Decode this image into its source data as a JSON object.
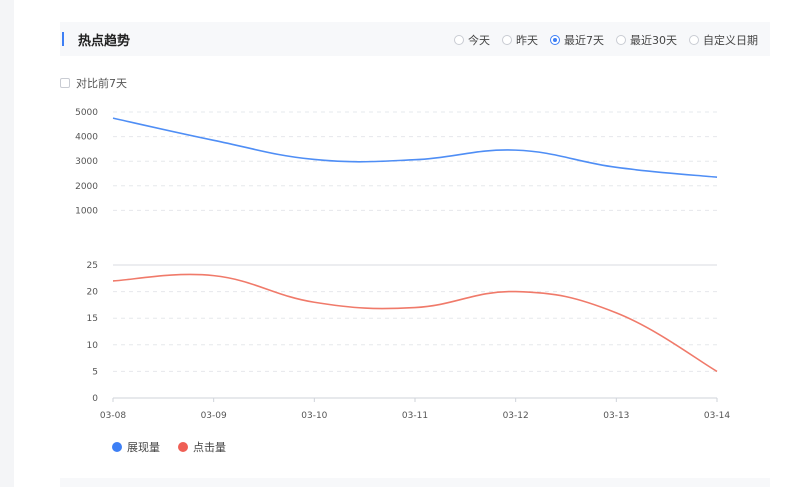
{
  "header": {
    "title": "热点趋势",
    "range_options": [
      {
        "label": "今天",
        "selected": false
      },
      {
        "label": "昨天",
        "selected": false
      },
      {
        "label": "最近7天",
        "selected": true
      },
      {
        "label": "最近30天",
        "selected": false
      },
      {
        "label": "自定义日期",
        "selected": false
      }
    ]
  },
  "compare": {
    "label": "对比前7天",
    "checked": false
  },
  "colors": {
    "accent": "#3d7ff5",
    "impressions": "#4f8ef5",
    "clicks": "#f07a6a"
  },
  "chart_data": [
    {
      "type": "line",
      "x": [
        "03-08",
        "03-09",
        "03-10",
        "03-11",
        "03-12",
        "03-13",
        "03-14"
      ],
      "series": [
        {
          "name": "展现量",
          "values": [
            4750,
            3850,
            3070,
            3060,
            3450,
            2750,
            2350
          ]
        }
      ],
      "yticks": [
        5000,
        4000,
        3000,
        2000,
        1000
      ],
      "ylim": [
        0,
        5000
      ],
      "grid": true
    },
    {
      "type": "line",
      "x": [
        "03-08",
        "03-09",
        "03-10",
        "03-11",
        "03-12",
        "03-13",
        "03-14"
      ],
      "series": [
        {
          "name": "点击量",
          "values": [
            22,
            23,
            18,
            17,
            20,
            16,
            5
          ]
        }
      ],
      "yticks": [
        25,
        20,
        15,
        10,
        5,
        0
      ],
      "ylim": [
        0,
        25
      ],
      "grid": true
    }
  ],
  "legend": [
    {
      "label": "展现量",
      "color": "#3d7ff5"
    },
    {
      "label": "点击量",
      "color": "#ef5f55"
    }
  ]
}
